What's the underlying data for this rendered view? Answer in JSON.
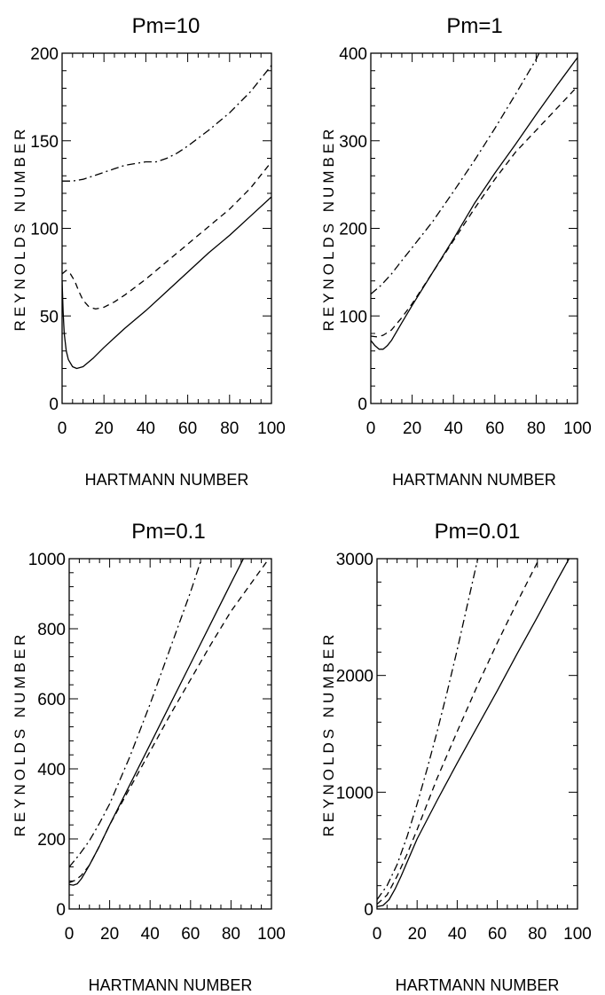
{
  "chart_data": [
    {
      "type": "line",
      "title": "Pm=10",
      "xlabel": "HARTMANN NUMBER",
      "ylabel": "REYNOLDS NUMBER",
      "xlim": [
        0,
        100
      ],
      "ylim": [
        0,
        200
      ],
      "xticks": [
        0,
        20,
        40,
        60,
        80,
        100
      ],
      "yticks": [
        0,
        50,
        100,
        150,
        200
      ],
      "xtick_labels": [
        "0",
        "20",
        "40",
        "60",
        "80",
        "100"
      ],
      "ytick_labels": [
        "0",
        "50",
        "100",
        "150",
        "200"
      ],
      "grid": false,
      "series": [
        {
          "style": "solid",
          "x": [
            0,
            0.5,
            1,
            2,
            3,
            5,
            7,
            10,
            15,
            20,
            30,
            40,
            50,
            60,
            70,
            80,
            90,
            100
          ],
          "y": [
            70,
            52,
            40,
            30,
            25,
            21,
            20,
            21,
            26,
            32,
            43,
            53,
            64,
            75,
            86,
            96,
            107,
            118
          ]
        },
        {
          "style": "dashed",
          "x": [
            0,
            2,
            4,
            6,
            8,
            10,
            13,
            16,
            20,
            25,
            30,
            40,
            50,
            60,
            70,
            80,
            90,
            100
          ],
          "y": [
            74,
            76,
            74,
            70,
            64,
            59,
            55,
            54,
            55,
            58,
            62,
            71,
            81,
            91,
            101,
            111,
            123,
            138
          ]
        },
        {
          "style": "dashdot",
          "x": [
            0,
            5,
            10,
            15,
            20,
            25,
            30,
            35,
            40,
            45,
            50,
            55,
            60,
            70,
            80,
            90,
            100
          ],
          "y": [
            127,
            127,
            128,
            130,
            132,
            134,
            136,
            137,
            138,
            138,
            140,
            143,
            147,
            156,
            166,
            178,
            193
          ]
        }
      ]
    },
    {
      "type": "line",
      "title": "Pm=1",
      "xlabel": "HARTMANN NUMBER",
      "ylabel": "REYNOLDS NUMBER",
      "xlim": [
        0,
        100
      ],
      "ylim": [
        0,
        400
      ],
      "xticks": [
        0,
        20,
        40,
        60,
        80,
        100
      ],
      "yticks": [
        0,
        100,
        200,
        300,
        400
      ],
      "xtick_labels": [
        "0",
        "20",
        "40",
        "60",
        "80",
        "100"
      ],
      "ytick_labels": [
        "0",
        "100",
        "200",
        "300",
        "400"
      ],
      "grid": false,
      "series": [
        {
          "style": "solid",
          "x": [
            0,
            2,
            4,
            6,
            8,
            10,
            15,
            20,
            30,
            40,
            50,
            60,
            70,
            80,
            90,
            100
          ],
          "y": [
            72,
            66,
            62,
            62,
            66,
            72,
            92,
            112,
            150,
            188,
            228,
            263,
            296,
            330,
            363,
            395
          ]
        },
        {
          "style": "dashed",
          "x": [
            0,
            3,
            6,
            10,
            15,
            20,
            30,
            40,
            50,
            60,
            70,
            80,
            90,
            100
          ],
          "y": [
            77,
            76,
            78,
            84,
            98,
            114,
            150,
            186,
            222,
            256,
            287,
            312,
            337,
            362
          ]
        },
        {
          "style": "dashdot",
          "x": [
            0,
            5,
            10,
            15,
            20,
            30,
            40,
            50,
            60,
            70,
            80,
            85
          ],
          "y": [
            125,
            135,
            148,
            163,
            178,
            208,
            242,
            277,
            314,
            353,
            393,
            418
          ]
        }
      ]
    },
    {
      "type": "line",
      "title": "Pm=0.1",
      "xlabel": "HARTMANN NUMBER",
      "ylabel": "REYNOLDS NUMBER",
      "xlim": [
        0,
        100
      ],
      "ylim": [
        0,
        1000
      ],
      "xticks": [
        0,
        20,
        40,
        60,
        80,
        100
      ],
      "yticks": [
        0,
        200,
        400,
        600,
        800,
        1000
      ],
      "xtick_labels": [
        "0",
        "20",
        "40",
        "60",
        "80",
        "100"
      ],
      "ytick_labels": [
        "0",
        "200",
        "400",
        "600",
        "800",
        "1000"
      ],
      "grid": false,
      "series": [
        {
          "style": "solid",
          "x": [
            0,
            2,
            4,
            6,
            8,
            10,
            15,
            20,
            30,
            40,
            50,
            60,
            70,
            80,
            87
          ],
          "y": [
            70,
            68,
            72,
            86,
            105,
            125,
            180,
            240,
            355,
            470,
            585,
            700,
            815,
            930,
            1010
          ]
        },
        {
          "style": "dashed",
          "x": [
            0,
            3,
            6,
            10,
            15,
            20,
            30,
            40,
            50,
            60,
            70,
            80,
            90,
            100
          ],
          "y": [
            75,
            82,
            96,
            125,
            180,
            240,
            345,
            450,
            555,
            655,
            755,
            850,
            930,
            1010
          ]
        },
        {
          "style": "dashdot",
          "x": [
            0,
            5,
            10,
            15,
            20,
            30,
            40,
            50,
            60,
            66
          ],
          "y": [
            120,
            155,
            195,
            245,
            300,
            435,
            585,
            745,
            905,
            1010
          ]
        }
      ]
    },
    {
      "type": "line",
      "title": "Pm=0.01",
      "xlabel": "HARTMANN NUMBER",
      "ylabel": "REYNOLDS NUMBER",
      "xlim": [
        0,
        100
      ],
      "ylim": [
        0,
        3000
      ],
      "xticks": [
        0,
        20,
        40,
        60,
        80,
        100
      ],
      "yticks": [
        0,
        1000,
        2000,
        3000
      ],
      "xtick_labels": [
        "0",
        "20",
        "40",
        "60",
        "80",
        "100"
      ],
      "ytick_labels": [
        "0",
        "1000",
        "2000",
        "3000"
      ],
      "grid": false,
      "series": [
        {
          "style": "solid",
          "x": [
            0,
            3,
            6,
            9,
            12,
            15,
            20,
            30,
            40,
            50,
            60,
            70,
            80,
            90,
            100
          ],
          "y": [
            20,
            30,
            80,
            170,
            280,
            400,
            600,
            930,
            1250,
            1560,
            1870,
            2190,
            2500,
            2820,
            3130
          ]
        },
        {
          "style": "dashed",
          "x": [
            0,
            5,
            10,
            15,
            20,
            25,
            30,
            40,
            50,
            60,
            70,
            80,
            92
          ],
          "y": [
            40,
            120,
            280,
            470,
            680,
            900,
            1120,
            1520,
            1910,
            2280,
            2630,
            2970,
            3350
          ]
        },
        {
          "style": "dashdot",
          "x": [
            0,
            5,
            10,
            15,
            20,
            25,
            30,
            35,
            40,
            45,
            50,
            54
          ],
          "y": [
            80,
            200,
            380,
            620,
            900,
            1200,
            1520,
            1860,
            2220,
            2600,
            2980,
            3300
          ]
        }
      ]
    }
  ]
}
